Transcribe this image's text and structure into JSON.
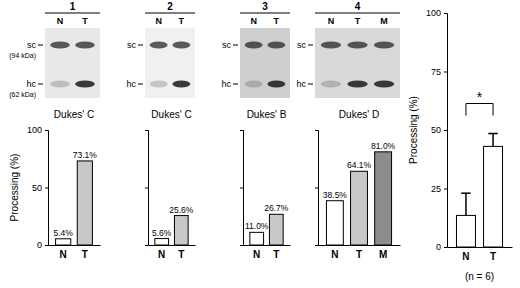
{
  "blots": [
    {
      "label": "1",
      "lanes": [
        "N",
        "T"
      ],
      "markers": [
        {
          "label": "sc",
          "size": "(94 kDa)"
        },
        {
          "label": "hc",
          "size": "(62 kDa)"
        }
      ]
    },
    {
      "label": "2",
      "lanes": [
        "N",
        "T"
      ],
      "markers": [
        {
          "label": "sc"
        },
        {
          "label": "hc"
        }
      ]
    },
    {
      "label": "3",
      "lanes": [
        "N",
        "T"
      ],
      "markers": [
        {
          "label": "sc"
        },
        {
          "label": "hc"
        }
      ]
    },
    {
      "label": "4",
      "lanes": [
        "N",
        "T",
        "M"
      ],
      "markers": [
        {
          "label": "sc"
        },
        {
          "label": "hc"
        }
      ]
    }
  ],
  "chart_data": [
    {
      "type": "bar",
      "title": "Dukes' C",
      "ylabel": "Processing (%)",
      "categories": [
        "N",
        "T"
      ],
      "values": [
        5.4,
        73.1
      ],
      "value_labels": [
        "5.4%",
        "73.1%"
      ],
      "data_labels": true,
      "colors": [
        "#ffffff",
        "#c8c8c8"
      ],
      "ylim": [
        0,
        100
      ],
      "yticks": [
        0,
        50,
        100
      ]
    },
    {
      "type": "bar",
      "title": "Dukes' C",
      "categories": [
        "N",
        "T"
      ],
      "values": [
        5.6,
        25.6
      ],
      "value_labels": [
        "5.6%",
        "25.6%"
      ],
      "data_labels": true,
      "colors": [
        "#ffffff",
        "#c8c8c8"
      ],
      "ylim": [
        0,
        100
      ],
      "yticks": [
        0,
        50,
        100
      ],
      "tick_labels": "x"
    },
    {
      "type": "bar",
      "title": "Dukes' B",
      "categories": [
        "N",
        "T"
      ],
      "values": [
        11.0,
        26.7
      ],
      "value_labels": [
        "11.0%",
        "26.7%"
      ],
      "data_labels": true,
      "colors": [
        "#ffffff",
        "#c8c8c8"
      ],
      "ylim": [
        0,
        100
      ],
      "yticks": [
        0,
        50,
        100
      ],
      "tick_labels": "x"
    },
    {
      "type": "bar",
      "title": "Dukes' D",
      "categories": [
        "N",
        "T",
        "M"
      ],
      "values": [
        38.5,
        64.1,
        81.0
      ],
      "value_labels": [
        "38.5%",
        "64.1%",
        "81.0%"
      ],
      "data_labels": true,
      "colors": [
        "#ffffff",
        "#c8c8c8",
        "#8c8c8c"
      ],
      "ylim": [
        0,
        100
      ],
      "yticks": [
        0,
        50,
        100
      ],
      "tick_labels": "x"
    },
    {
      "type": "bar",
      "ylabel": "Processing (%)",
      "xlabel": "(n = 6)",
      "categories": [
        "N",
        "T"
      ],
      "values": [
        13.5,
        43
      ],
      "errors": [
        9.5,
        5.5
      ],
      "colors": [
        "#ffffff",
        "#ffffff"
      ],
      "ylim": [
        0,
        100
      ],
      "yticks": [
        0,
        25,
        50,
        75,
        100
      ],
      "annotation": "*"
    }
  ]
}
